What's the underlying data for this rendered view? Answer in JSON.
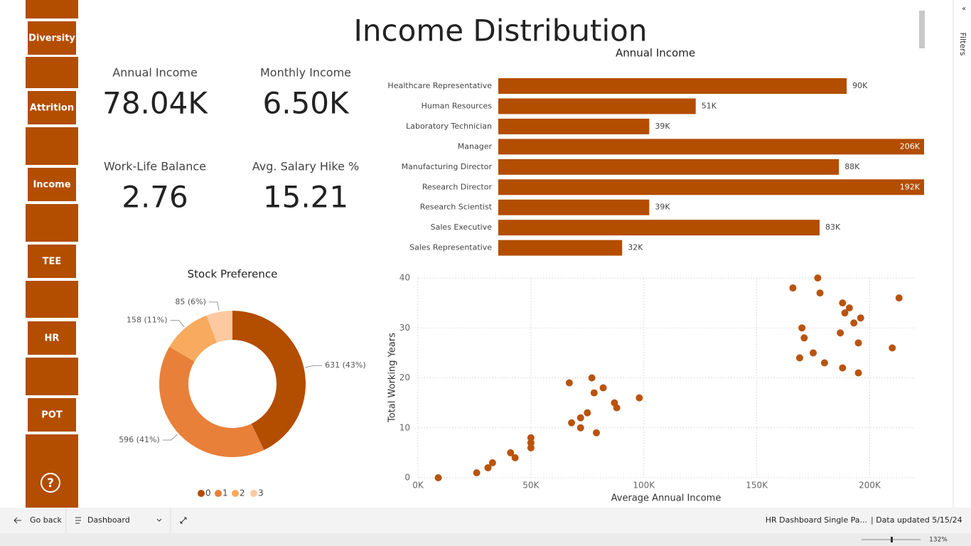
{
  "title": "Income Distribution",
  "nav": [
    "Diversity",
    "Attrition",
    "Income",
    "TEE",
    "HR",
    "POT"
  ],
  "help": "?",
  "filters": "Filters",
  "kpis": [
    {
      "label": "Annual Income",
      "value": "78.04K"
    },
    {
      "label": "Monthly Income",
      "value": "6.50K"
    },
    {
      "label": "Work-Life Balance",
      "value": "2.76"
    },
    {
      "label": "Avg. Salary Hike %",
      "value": "15.21"
    }
  ],
  "footer": {
    "back": "Go back",
    "page": "Dashboard",
    "report": "HR Dashboard Single Pa...",
    "updated": "| Data updated 5/15/24",
    "zoom": "132%"
  },
  "chart_data": [
    {
      "type": "bar",
      "title": "Annual Income",
      "color": "#b34d00",
      "categories": [
        "Healthcare Representative",
        "Human Resources",
        "Laboratory Technician",
        "Manager",
        "Manufacturing Director",
        "Research Director",
        "Research Scientist",
        "Sales Executive",
        "Sales Representative"
      ],
      "values": [
        90000,
        51000,
        39000,
        206000,
        88000,
        192000,
        39000,
        83000,
        32000
      ],
      "value_labels": [
        "90K",
        "51K",
        "39K",
        "206K",
        "88K",
        "192K",
        "39K",
        "83K",
        "32K"
      ],
      "xlim": [
        0,
        110000
      ]
    },
    {
      "type": "pie",
      "title": "Stock Preference",
      "categories": [
        "0",
        "1",
        "2",
        "3"
      ],
      "values": [
        631,
        596,
        158,
        85
      ],
      "value_labels": [
        "631 (43%)",
        "596 (41%)",
        "158 (11%)",
        "85 (6%)"
      ],
      "colors": [
        "#b34d00",
        "#e8803a",
        "#f8aa5e",
        "#fcc9a0"
      ],
      "legend": "bottom"
    },
    {
      "type": "scatter",
      "color": "#b8540f",
      "x_label": "Average Annual Income",
      "y_label": "Total Working Years",
      "x": [
        9000,
        26000,
        31000,
        33000,
        41000,
        43000,
        50000,
        50000,
        50000,
        67000,
        68000,
        72000,
        72000,
        75000,
        77000,
        78000,
        79000,
        82000,
        87000,
        88000,
        98000,
        166000,
        177000,
        178000,
        170000,
        171000,
        169000,
        175000,
        180000,
        187000,
        188000,
        188000,
        189000,
        191000,
        193000,
        195000,
        195000,
        196000,
        210000,
        213000
      ],
      "values": [
        0,
        1,
        2,
        3,
        5,
        4,
        7,
        8,
        6,
        19,
        11,
        12,
        10,
        13,
        20,
        17,
        9,
        18,
        15,
        14,
        16,
        38,
        40,
        37,
        30,
        28,
        24,
        25,
        23,
        29,
        22,
        35,
        33,
        34,
        31,
        27,
        21,
        32,
        26,
        36
      ],
      "xlim": [
        0,
        220000
      ],
      "ylim": [
        0,
        40
      ],
      "xticks": [
        {
          "value": 0,
          "label": "0K"
        },
        {
          "value": 50000,
          "label": "50K"
        },
        {
          "value": 100000,
          "label": "100K"
        },
        {
          "value": 150000,
          "label": "150K"
        },
        {
          "value": 200000,
          "label": "200K"
        }
      ],
      "yticks": [
        0,
        10,
        20,
        30,
        40
      ],
      "grid": true
    }
  ]
}
